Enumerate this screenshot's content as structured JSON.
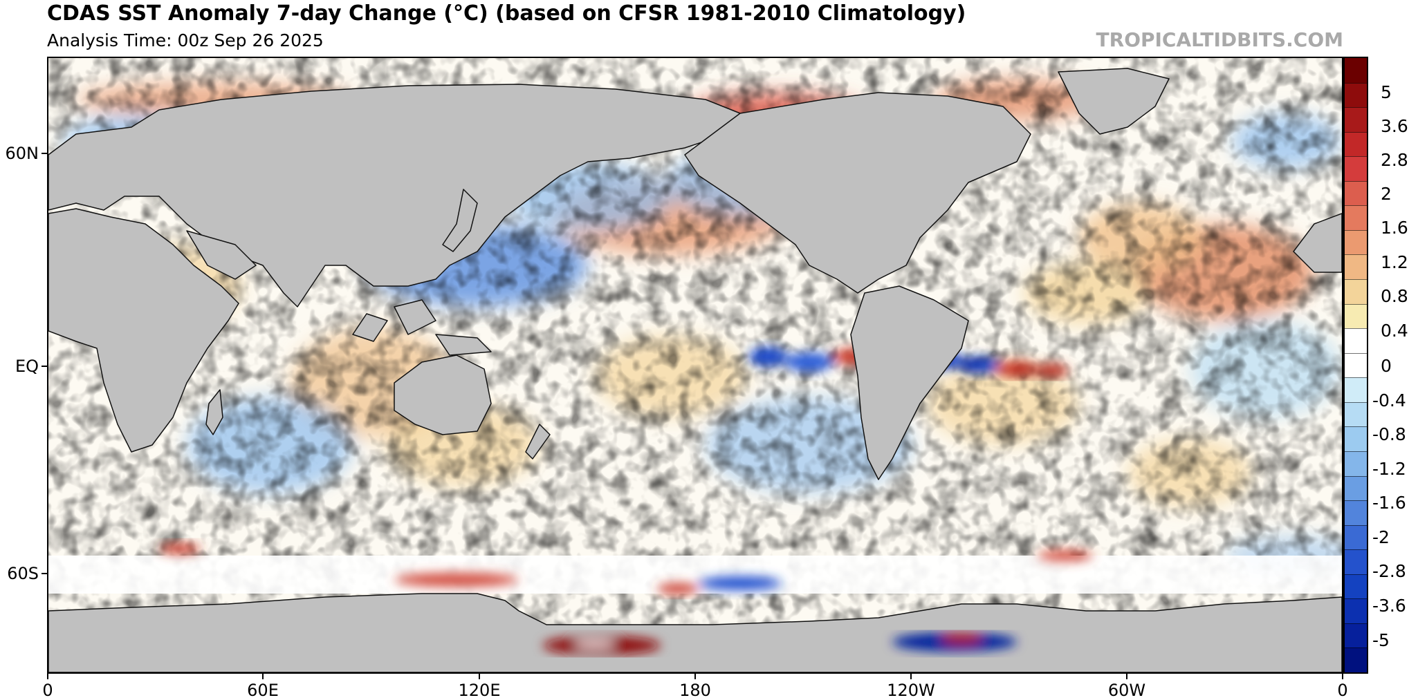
{
  "header": {
    "title": "CDAS SST Anomaly 7-day Change (°C) (based on CFSR 1981-2010 Climatology)",
    "subtitle": "Analysis Time: 00z Sep 26 2025",
    "watermark": "TROPICALTIDBITS.COM"
  },
  "map": {
    "projection": "equirectangular, Pacific-centered (0° to 360°)",
    "lat_labels": [
      "60N",
      "EQ",
      "60S"
    ],
    "lon_labels": [
      "0",
      "60E",
      "120E",
      "180",
      "120W",
      "60W",
      "0"
    ],
    "land_color": "#c0c0c0",
    "ocean_base_color": "#ffffff",
    "features": [
      {
        "name": "equatorial-cooling-band",
        "sign": "negative",
        "region": "central-east equatorial Pacific"
      },
      {
        "name": "north-pacific-cooling",
        "sign": "negative",
        "region": "Kuroshio extension / NW Pacific"
      },
      {
        "name": "north-pacific-warming",
        "sign": "positive",
        "region": "central North Pacific"
      },
      {
        "name": "north-atlantic-warming",
        "sign": "positive",
        "region": "subtropical North Atlantic"
      },
      {
        "name": "ross-sea-warming",
        "sign": "positive",
        "region": "Ross Sea"
      },
      {
        "name": "weddell-sea-mixed",
        "sign": "mixed",
        "region": "Weddell Sea"
      }
    ]
  },
  "colorbar": {
    "labels": [
      "5",
      "3.6",
      "2.8",
      "2",
      "1.6",
      "1.2",
      "0.8",
      "0.4",
      "0",
      "-0.4",
      "-0.8",
      "-1.2",
      "-1.6",
      "-2",
      "-2.8",
      "-3.6",
      "-5"
    ],
    "colors": [
      "#6b0000",
      "#8e0c0c",
      "#a81a1a",
      "#c22828",
      "#d43c3c",
      "#dc5e4e",
      "#e47a5e",
      "#eb9a70",
      "#f0b884",
      "#f3d49a",
      "#f7ebb2",
      "#ffffff",
      "#ffffff",
      "#d0ecf8",
      "#b6dcf4",
      "#9ccbf0",
      "#84b6ea",
      "#6a9ee3",
      "#5284dc",
      "#3a6ad4",
      "#2452cc",
      "#1442c0",
      "#0c30b0",
      "#06209c",
      "#00117f"
    ]
  }
}
